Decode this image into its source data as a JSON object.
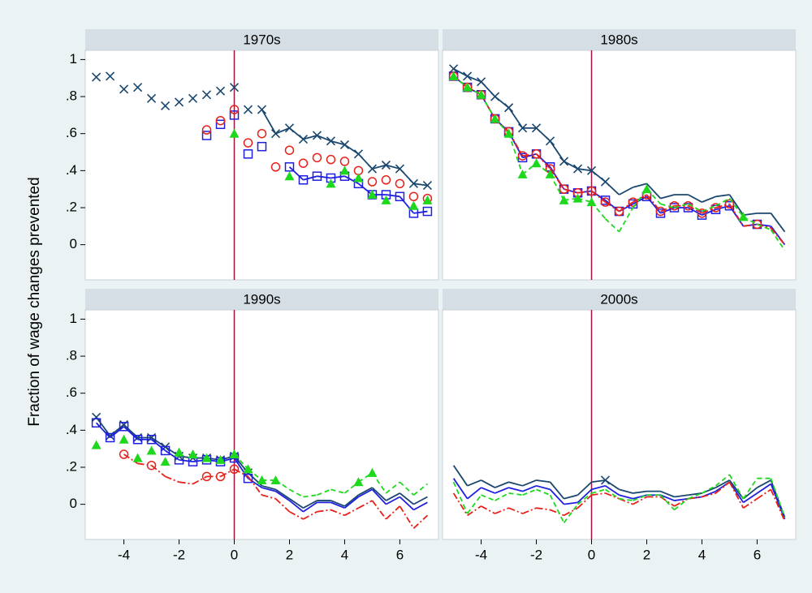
{
  "ylabel": "Fraction of wage changes prevented",
  "chart_data": [
    {
      "type": "line",
      "title": "1970s",
      "vline": 0,
      "xlim": [
        -5.4,
        7.4
      ],
      "ylim": [
        -0.19,
        1.05
      ],
      "yticks": [
        0,
        {
          "value": 0.2,
          "label": ".2"
        },
        {
          "value": 0.4,
          "label": ".4"
        },
        {
          "value": 0.6,
          "label": ".6"
        },
        {
          "value": 0.8,
          "label": ".8"
        },
        1
      ],
      "x": [
        -5,
        -4.5,
        -4,
        -3.5,
        -3,
        -2.5,
        -2,
        -1.5,
        -1,
        -0.5,
        0,
        0.5,
        1,
        1.5,
        2,
        2.5,
        3,
        3.5,
        4,
        4.5,
        5,
        5.5,
        6,
        6.5,
        7
      ],
      "series": [
        {
          "color": "#1a476f",
          "marker": "x",
          "dash": "solid",
          "values": [
            0.905,
            0.91,
            0.84,
            0.85,
            0.79,
            0.75,
            0.77,
            0.79,
            0.81,
            0.83,
            0.85,
            0.73,
            0.73,
            0.6,
            0.63,
            0.57,
            0.59,
            0.56,
            0.54,
            0.49,
            0.41,
            0.43,
            0.41,
            0.33,
            0.32
          ],
          "styles": [
            "m",
            "m",
            "m",
            "m",
            "m",
            "m",
            "m",
            "m",
            "m",
            "m",
            "m",
            "m",
            "b",
            "b",
            "b",
            "b",
            "b",
            "b",
            "b",
            "b",
            "b",
            "b",
            "b",
            "b",
            "b"
          ]
        },
        {
          "color": "#1f1fe0",
          "marker": "square",
          "dash": "solid",
          "values": [
            null,
            null,
            null,
            null,
            null,
            null,
            null,
            null,
            0.59,
            0.65,
            0.7,
            0.49,
            0.53,
            null,
            0.42,
            0.35,
            0.37,
            0.36,
            0.37,
            0.33,
            0.27,
            0.27,
            0.26,
            0.17,
            0.18
          ],
          "styles": [
            null,
            null,
            null,
            null,
            null,
            null,
            null,
            null,
            "m",
            "m",
            "m",
            "m",
            "m",
            null,
            "b",
            "b",
            "b",
            "b",
            "b",
            "b",
            "b",
            "b",
            "b",
            "b",
            "b"
          ]
        },
        {
          "color": "#e8201a",
          "marker": "circle",
          "dash": "dashdot",
          "values": [
            null,
            null,
            null,
            null,
            null,
            null,
            null,
            null,
            0.62,
            0.67,
            0.73,
            0.55,
            0.6,
            0.42,
            0.51,
            0.44,
            0.47,
            0.46,
            0.45,
            0.4,
            0.34,
            0.35,
            0.33,
            0.26,
            0.25
          ],
          "styles": [
            null,
            null,
            null,
            null,
            null,
            null,
            null,
            null,
            "m",
            "m",
            "m",
            "m",
            "m",
            "m",
            "m",
            "m",
            "m",
            "m",
            "m",
            "m",
            "m",
            "m",
            "m",
            "m",
            "m"
          ]
        },
        {
          "color": "#1ed81e",
          "marker": "triangle",
          "dash": "dashed",
          "values": [
            null,
            null,
            null,
            null,
            null,
            null,
            null,
            null,
            null,
            null,
            0.6,
            null,
            null,
            null,
            0.37,
            null,
            null,
            0.33,
            0.4,
            0.36,
            0.27,
            0.24,
            null,
            0.21,
            0.24
          ],
          "styles": [
            null,
            null,
            null,
            null,
            null,
            null,
            null,
            null,
            null,
            null,
            "m",
            null,
            null,
            null,
            "m",
            null,
            null,
            "m",
            "m",
            "m",
            "m",
            "m",
            null,
            "m",
            "m"
          ]
        }
      ]
    },
    {
      "type": "line",
      "title": "1980s",
      "vline": 0,
      "xlim": [
        -5.4,
        7.4
      ],
      "ylim": [
        -0.19,
        1.05
      ],
      "x": [
        -5,
        -4.5,
        -4,
        -3.5,
        -3,
        -2.5,
        -2,
        -1.5,
        -1,
        -0.5,
        0,
        0.5,
        1,
        1.5,
        2,
        2.5,
        3,
        3.5,
        4,
        4.5,
        5,
        5.5,
        6,
        6.5,
        7
      ],
      "series": [
        {
          "color": "#1a476f",
          "marker": "x",
          "dash": "solid",
          "values": [
            0.95,
            0.91,
            0.88,
            0.8,
            0.74,
            0.63,
            0.63,
            0.56,
            0.45,
            0.41,
            0.4,
            0.34,
            0.27,
            0.31,
            0.33,
            0.25,
            0.27,
            0.27,
            0.23,
            0.26,
            0.27,
            0.16,
            0.17,
            0.17,
            0.07
          ],
          "styles": [
            "b",
            "b",
            "b",
            "b",
            "b",
            "b",
            "b",
            "b",
            "b",
            "b",
            "b",
            "b",
            "l",
            "l",
            "l",
            "l",
            "l",
            "l",
            "l",
            "l",
            "l",
            "l",
            "l",
            "l",
            "l"
          ]
        },
        {
          "color": "#1f1fe0",
          "marker": "square",
          "dash": "solid",
          "values": [
            0.91,
            0.85,
            0.81,
            0.68,
            0.61,
            0.47,
            0.49,
            0.42,
            0.3,
            0.28,
            0.29,
            0.24,
            0.18,
            0.22,
            0.26,
            0.17,
            0.2,
            0.2,
            0.16,
            0.19,
            0.21,
            0.1,
            0.11,
            0.1,
            0.0
          ],
          "styles": [
            "b",
            "b",
            "b",
            "b",
            "b",
            "b",
            "b",
            "b",
            "b",
            "b",
            "b",
            "b",
            "b",
            "b",
            "b",
            "b",
            "b",
            "b",
            "b",
            "b",
            "b",
            "l",
            "b",
            "l",
            "l"
          ]
        },
        {
          "color": "#e8201a",
          "marker": "circle",
          "dash": "dashdot",
          "values": [
            0.91,
            0.85,
            0.81,
            0.68,
            0.61,
            0.48,
            0.49,
            0.41,
            0.3,
            0.28,
            0.29,
            0.23,
            0.18,
            0.23,
            0.27,
            0.18,
            0.21,
            0.21,
            0.17,
            0.2,
            0.22,
            0.1,
            0.11,
            0.09,
            0.0
          ],
          "styles": [
            "b",
            "b",
            "b",
            "b",
            "b",
            "b",
            "b",
            "b",
            "b",
            "b",
            "b",
            "b",
            "b",
            "b",
            "b",
            "b",
            "b",
            "b",
            "b",
            "b",
            "b",
            "l",
            "b",
            "l",
            "l"
          ]
        },
        {
          "color": "#1ed81e",
          "marker": "triangle",
          "dash": "dashed",
          "values": [
            0.91,
            0.85,
            0.81,
            0.68,
            0.6,
            0.38,
            0.44,
            0.38,
            0.24,
            0.25,
            0.23,
            0.14,
            0.07,
            0.2,
            0.3,
            0.22,
            0.2,
            0.22,
            0.18,
            0.21,
            0.25,
            0.15,
            0.11,
            0.08,
            -0.03
          ],
          "styles": [
            "b",
            "b",
            "b",
            "b",
            "b",
            "b",
            "b",
            "b",
            "b",
            "b",
            "b",
            "l",
            "l",
            "l",
            "b",
            "l",
            "l",
            "l",
            "l",
            "l",
            "l",
            "b",
            "l",
            "l",
            "l"
          ]
        }
      ]
    },
    {
      "type": "line",
      "title": "1990s",
      "vline": 0,
      "xlim": [
        -5.4,
        7.4
      ],
      "ylim": [
        -0.19,
        1.05
      ],
      "yticks": [
        0,
        {
          "value": 0.2,
          "label": ".2"
        },
        {
          "value": 0.4,
          "label": ".4"
        },
        {
          "value": 0.6,
          "label": ".6"
        },
        {
          "value": 0.8,
          "label": ".8"
        },
        1
      ],
      "xticks": [
        -4,
        -2,
        0,
        2,
        4,
        6
      ],
      "x": [
        -5,
        -4.5,
        -4,
        -3.5,
        -3,
        -2.5,
        -2,
        -1.5,
        -1,
        -0.5,
        0,
        0.5,
        1,
        1.5,
        2,
        2.5,
        3,
        3.5,
        4,
        4.5,
        5,
        5.5,
        6,
        6.5,
        7
      ],
      "series": [
        {
          "color": "#1a476f",
          "marker": "x",
          "dash": "solid",
          "values": [
            0.47,
            0.37,
            0.43,
            0.36,
            0.36,
            0.31,
            0.26,
            0.25,
            0.25,
            0.24,
            0.26,
            0.17,
            0.1,
            0.08,
            0.03,
            -0.02,
            0.02,
            0.02,
            -0.01,
            0.05,
            0.09,
            0.02,
            0.06,
            0.0,
            0.04
          ],
          "styles": [
            "b",
            "b",
            "b",
            "b",
            "b",
            "b",
            "b",
            "b",
            "b",
            "b",
            "b",
            "b",
            "l",
            "l",
            "l",
            "l",
            "l",
            "l",
            "l",
            "l",
            "l",
            "l",
            "l",
            "l",
            "l"
          ]
        },
        {
          "color": "#1f1fe0",
          "marker": "square",
          "dash": "solid",
          "values": [
            0.44,
            0.36,
            0.42,
            0.35,
            0.35,
            0.29,
            0.24,
            0.23,
            0.24,
            0.23,
            0.25,
            0.14,
            0.09,
            0.07,
            0.02,
            -0.04,
            0.01,
            0.01,
            -0.02,
            0.04,
            0.08,
            0.0,
            0.04,
            -0.03,
            0.01
          ],
          "styles": [
            "b",
            "b",
            "b",
            "b",
            "b",
            "b",
            "b",
            "b",
            "b",
            "b",
            "b",
            "b",
            "l",
            "l",
            "l",
            "l",
            "l",
            "l",
            "l",
            "l",
            "l",
            "l",
            "l",
            "l",
            "l"
          ]
        },
        {
          "color": "#e8201a",
          "marker": "circle",
          "dash": "dashdot",
          "values": [
            null,
            null,
            0.27,
            0.22,
            0.21,
            0.15,
            0.12,
            0.11,
            0.15,
            0.15,
            0.19,
            0.15,
            0.05,
            0.03,
            -0.04,
            -0.08,
            -0.04,
            -0.03,
            -0.06,
            -0.02,
            0.02,
            -0.08,
            -0.01,
            -0.13,
            -0.06
          ],
          "styles": [
            null,
            null,
            "b",
            "l",
            "b",
            "l",
            "l",
            "l",
            "b",
            "b",
            "b",
            "l",
            "l",
            "l",
            "l",
            "l",
            "l",
            "l",
            "l",
            "l",
            "l",
            "l",
            "l",
            "l",
            "l"
          ]
        },
        {
          "color": "#1ed81e",
          "marker": "triangle",
          "dash": "dashed",
          "values": [
            0.32,
            null,
            0.35,
            0.25,
            0.29,
            0.23,
            0.28,
            0.27,
            0.25,
            0.24,
            0.27,
            0.19,
            0.13,
            0.13,
            0.08,
            0.04,
            0.05,
            0.08,
            0.06,
            0.12,
            0.17,
            0.06,
            0.12,
            0.05,
            0.11
          ],
          "styles": [
            "m",
            null,
            "m",
            "m",
            "m",
            "m",
            "m",
            "m",
            "m",
            "m",
            "b",
            "b",
            "b",
            "b",
            "l",
            "l",
            "l",
            "l",
            "l",
            "b",
            "b",
            "l",
            "l",
            "l",
            "l"
          ]
        }
      ]
    },
    {
      "type": "line",
      "title": "2000s",
      "vline": 0,
      "xlim": [
        -5.4,
        7.4
      ],
      "ylim": [
        -0.19,
        1.05
      ],
      "xticks": [
        -4,
        -2,
        0,
        2,
        4,
        6
      ],
      "x": [
        -5,
        -4.5,
        -4,
        -3.5,
        -3,
        -2.5,
        -2,
        -1.5,
        -1,
        -0.5,
        0,
        0.5,
        1,
        1.5,
        2,
        2.5,
        3,
        3.5,
        4,
        4.5,
        5,
        5.5,
        6,
        6.5,
        7
      ],
      "series": [
        {
          "color": "#1a476f",
          "marker": "x",
          "dash": "solid",
          "values": [
            0.21,
            0.1,
            0.13,
            0.09,
            0.12,
            0.1,
            0.13,
            0.12,
            0.03,
            0.05,
            0.12,
            0.13,
            0.08,
            0.06,
            0.07,
            0.07,
            0.04,
            0.05,
            0.06,
            0.09,
            0.13,
            0.03,
            0.09,
            0.13,
            -0.07
          ],
          "styles": [
            "l",
            "l",
            "l",
            "l",
            "l",
            "l",
            "l",
            "l",
            "l",
            "l",
            "l",
            "b",
            "l",
            "l",
            "l",
            "l",
            "l",
            "l",
            "l",
            "l",
            "l",
            "l",
            "l",
            "l",
            "l"
          ]
        },
        {
          "color": "#1f1fe0",
          "marker": "square",
          "dash": "solid",
          "values": [
            0.14,
            0.03,
            0.09,
            0.06,
            0.09,
            0.07,
            0.1,
            0.08,
            0.0,
            0.01,
            0.08,
            0.1,
            0.05,
            0.03,
            0.05,
            0.05,
            0.02,
            0.03,
            0.04,
            0.07,
            0.12,
            0.01,
            0.06,
            0.11,
            -0.08
          ],
          "styles": [
            "l",
            "l",
            "l",
            "l",
            "l",
            "l",
            "l",
            "l",
            "l",
            "l",
            "l",
            "l",
            "l",
            "l",
            "l",
            "l",
            "l",
            "l",
            "l",
            "l",
            "l",
            "l",
            "l",
            "l",
            "l"
          ]
        },
        {
          "color": "#e8201a",
          "marker": "circle",
          "dash": "dashdot",
          "values": [
            0.06,
            -0.06,
            -0.01,
            -0.05,
            -0.02,
            -0.05,
            -0.02,
            -0.03,
            -0.06,
            -0.02,
            0.05,
            0.06,
            0.03,
            0.0,
            0.04,
            0.04,
            -0.01,
            0.03,
            0.04,
            0.06,
            0.12,
            -0.02,
            0.03,
            0.08,
            -0.09
          ],
          "styles": [
            "l",
            "l",
            "l",
            "l",
            "l",
            "l",
            "l",
            "l",
            "l",
            "l",
            "l",
            "l",
            "l",
            "l",
            "l",
            "l",
            "l",
            "l",
            "l",
            "l",
            "l",
            "l",
            "l",
            "l",
            "l"
          ]
        },
        {
          "color": "#1ed81e",
          "marker": "triangle",
          "dash": "dashed",
          "values": [
            0.12,
            -0.05,
            0.05,
            0.02,
            0.06,
            0.05,
            0.08,
            0.05,
            -0.1,
            0.0,
            0.06,
            0.08,
            0.03,
            0.02,
            0.05,
            0.05,
            -0.03,
            0.03,
            0.06,
            0.1,
            0.16,
            0.03,
            0.14,
            0.14,
            -0.07
          ],
          "styles": [
            "l",
            "l",
            "l",
            "l",
            "l",
            "l",
            "l",
            "l",
            "l",
            "l",
            "l",
            "l",
            "l",
            "l",
            "l",
            "l",
            "l",
            "l",
            "l",
            "l",
            "l",
            "l",
            "l",
            "l",
            "l"
          ]
        }
      ]
    }
  ]
}
